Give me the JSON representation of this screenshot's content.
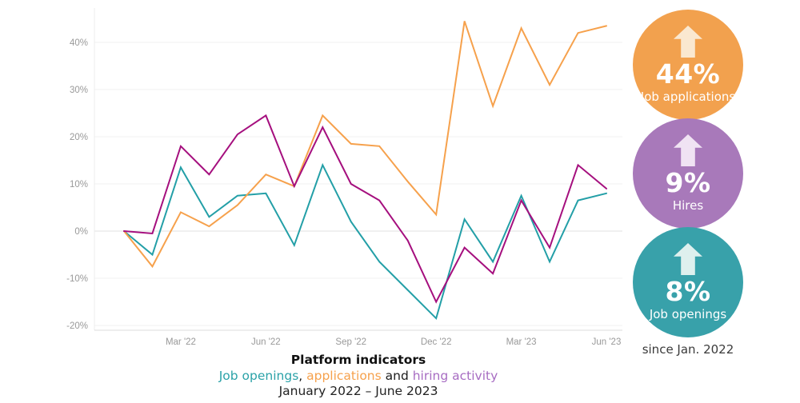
{
  "chart": {
    "title": "Platform indicators",
    "subtitle_parts": [
      {
        "text": "Job openings",
        "color": "#2ba2a8"
      },
      {
        "text": ", ",
        "color": "#1c1c1c"
      },
      {
        "text": "applications",
        "color": "#f6a14c"
      },
      {
        "text": " and ",
        "color": "#1c1c1c"
      },
      {
        "text": "hiring activity",
        "color": "#a76cc2"
      }
    ],
    "date_range": "January 2022 – June 2023"
  },
  "chart_data": {
    "type": "line",
    "x": [
      "Jan '22",
      "Feb '22",
      "Mar '22",
      "Apr '22",
      "May '22",
      "Jun '22",
      "Jul '22",
      "Aug '22",
      "Sep '22",
      "Oct '22",
      "Nov '22",
      "Dec '22",
      "Jan '23",
      "Feb '23",
      "Mar '23",
      "Apr '23",
      "May '23",
      "Jun '23"
    ],
    "series": [
      {
        "name": "Job openings",
        "color": "#239fa7",
        "values": [
          0,
          -5,
          13.5,
          3,
          7.5,
          8,
          -3,
          14,
          2,
          -6.5,
          -12.5,
          -18.5,
          2.5,
          -6.5,
          7.5,
          -6.5,
          6.5,
          8
        ]
      },
      {
        "name": "Applications",
        "color": "#f6a14c",
        "values": [
          0,
          -7.5,
          4,
          1,
          5.5,
          12,
          9.5,
          24.5,
          18.5,
          18,
          10.5,
          3.5,
          44.5,
          26.5,
          43,
          31,
          42,
          43.5
        ]
      },
      {
        "name": "Hiring activity",
        "color": "#a50f7e",
        "values": [
          0,
          -0.5,
          18,
          12,
          20.5,
          24.5,
          9.5,
          22,
          10,
          6.5,
          -2,
          -15,
          -3.5,
          -9,
          6.5,
          -3.5,
          14,
          9
        ]
      }
    ],
    "ylim": [
      -21,
      47
    ],
    "grid": true,
    "legend_position": "below-as-colored-subtitle",
    "y_ticks": [
      {
        "label": "40%",
        "value": 40
      },
      {
        "label": "30%",
        "value": 30
      },
      {
        "label": "20%",
        "value": 20
      },
      {
        "label": "10%",
        "value": 10
      },
      {
        "label": "0%",
        "value": 0
      },
      {
        "label": "-10%",
        "value": -10
      },
      {
        "label": "-20%",
        "value": -20
      }
    ],
    "x_ticks": [
      {
        "label": "Mar '22",
        "index": 2
      },
      {
        "label": "Jun '22",
        "index": 5
      },
      {
        "label": "Sep '22",
        "index": 8
      },
      {
        "label": "Dec '22",
        "index": 11
      },
      {
        "label": "Mar '23",
        "index": 14
      },
      {
        "label": "Jun '23",
        "index": 17
      }
    ],
    "title": "Platform indicators",
    "xlabel": "",
    "ylabel": ""
  },
  "badges": [
    {
      "value": "44%",
      "label": "Job applications",
      "color": "#f2a14e",
      "arrow_color": "#fae8d0",
      "icon": "up-arrow"
    },
    {
      "value": "9%",
      "label": "Hires",
      "color": "#a879ba",
      "arrow_color": "#f0e3f3",
      "icon": "up-arrow"
    },
    {
      "value": "8%",
      "label": "Job openings",
      "color": "#38a1aa",
      "arrow_color": "#def0ee",
      "icon": "up-arrow"
    }
  ],
  "footnote": "since Jan. 2022",
  "colors": {
    "grid": "#f0f0f0",
    "zero_grid": "#e2e2e2",
    "axis_line": "#dddddd",
    "tick_text": "#999999"
  }
}
